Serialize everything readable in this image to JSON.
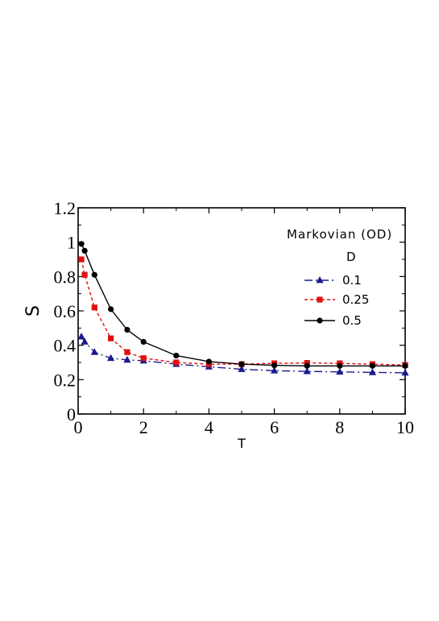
{
  "chart_data": {
    "type": "line",
    "xlabel": "T",
    "ylabel": "S",
    "xlim": [
      0,
      10
    ],
    "ylim": [
      0,
      1.2
    ],
    "xticks": [
      0,
      2,
      4,
      6,
      8,
      10
    ],
    "yticks": [
      0,
      0.2,
      0.4,
      0.6,
      0.8,
      1,
      1.2
    ],
    "ytick_labels": [
      "0",
      "0.2",
      "0.4",
      "0.6",
      "0.8",
      "1",
      "1.2"
    ],
    "legend_title": "Markovian (OD)",
    "legend_subtitle": "D",
    "legend_placement": "right",
    "grid": false,
    "series": [
      {
        "name": "0.1",
        "color": "#1a1a8c",
        "marker": "triangle",
        "dash": "dash-dot",
        "x": [
          0.1,
          0.2,
          0.5,
          1,
          1.5,
          2,
          3,
          4,
          5,
          6,
          7,
          8,
          9,
          10
        ],
        "y": [
          0.45,
          0.42,
          0.36,
          0.325,
          0.315,
          0.31,
          0.29,
          0.275,
          0.26,
          0.252,
          0.248,
          0.245,
          0.242,
          0.24
        ]
      },
      {
        "name": "0.25",
        "color": "#e01010",
        "marker": "square",
        "dash": "dotted",
        "x": [
          0.1,
          0.2,
          0.5,
          1,
          1.5,
          2,
          3,
          4,
          5,
          6,
          7,
          8,
          9,
          10
        ],
        "y": [
          0.9,
          0.81,
          0.62,
          0.44,
          0.36,
          0.325,
          0.3,
          0.29,
          0.29,
          0.295,
          0.297,
          0.295,
          0.29,
          0.285
        ]
      },
      {
        "name": "0.5",
        "color": "#000000",
        "marker": "circle",
        "dash": "solid",
        "x": [
          0.1,
          0.2,
          0.5,
          1,
          1.5,
          2,
          3,
          4,
          5,
          6,
          7,
          8,
          9,
          10
        ],
        "y": [
          0.99,
          0.95,
          0.81,
          0.61,
          0.49,
          0.42,
          0.34,
          0.305,
          0.29,
          0.283,
          0.28,
          0.28,
          0.28,
          0.28
        ]
      }
    ]
  }
}
